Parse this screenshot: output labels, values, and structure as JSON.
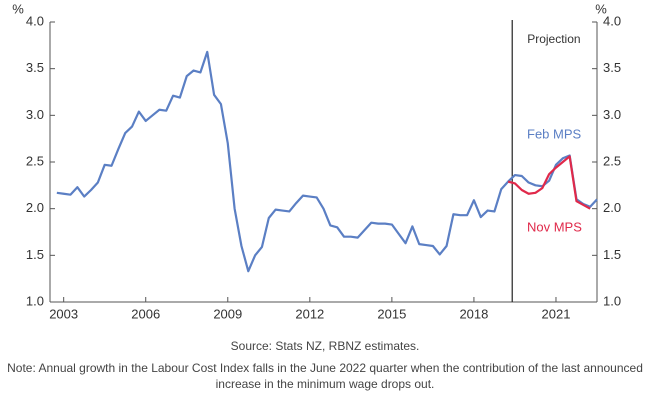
{
  "chart_data": {
    "type": "line",
    "y_unit": "%",
    "y2_unit": "%",
    "annotation": "Projection",
    "projection_start": 2019.4,
    "source": "Source: Stats NZ, RBNZ estimates.",
    "note": "Note: Annual growth in the Labour Cost Index falls in the June 2022 quarter when the contribution of the last announced increase in the minimum wage drops out.",
    "x": [
      2002.75,
      2003,
      2003.25,
      2003.5,
      2003.75,
      2004,
      2004.25,
      2004.5,
      2004.75,
      2005,
      2005.25,
      2005.5,
      2005.75,
      2006,
      2006.25,
      2006.5,
      2006.75,
      2007,
      2007.25,
      2007.5,
      2007.75,
      2008,
      2008.25,
      2008.5,
      2008.75,
      2009,
      2009.25,
      2009.5,
      2009.75,
      2010,
      2010.25,
      2010.5,
      2010.75,
      2011,
      2011.25,
      2011.5,
      2011.75,
      2012,
      2012.25,
      2012.5,
      2012.75,
      2013,
      2013.25,
      2013.5,
      2013.75,
      2014,
      2014.25,
      2014.5,
      2014.75,
      2015,
      2015.25,
      2015.5,
      2015.75,
      2016,
      2016.25,
      2016.5,
      2016.75,
      2017,
      2017.25,
      2017.5,
      2017.75,
      2018,
      2018.25,
      2018.5,
      2018.75,
      2019,
      2019.25,
      2019.5,
      2019.75,
      2020,
      2020.25,
      2020.5,
      2020.75,
      2021,
      2021.25,
      2021.5,
      2021.75,
      2022,
      2022.25,
      2022.5
    ],
    "series": [
      {
        "name": "Feb MPS",
        "color": "#5b7fc4",
        "values": [
          2.17,
          2.16,
          2.15,
          2.23,
          2.13,
          2.2,
          2.28,
          2.47,
          2.46,
          2.64,
          2.81,
          2.88,
          3.04,
          2.94,
          3.0,
          3.06,
          3.05,
          3.21,
          3.19,
          3.42,
          3.48,
          3.46,
          3.68,
          3.22,
          3.12,
          2.7,
          2.0,
          1.6,
          1.33,
          1.5,
          1.59,
          1.9,
          1.99,
          1.98,
          1.97,
          2.06,
          2.14,
          2.13,
          2.12,
          2.0,
          1.82,
          1.8,
          1.7,
          1.7,
          1.69,
          1.77,
          1.85,
          1.84,
          1.84,
          1.83,
          1.73,
          1.63,
          1.81,
          1.62,
          1.61,
          1.6,
          1.51,
          1.6,
          1.94,
          1.93,
          1.93,
          2.09,
          1.91,
          1.98,
          1.97,
          2.21,
          2.29,
          2.36,
          2.35,
          2.28,
          2.25,
          2.24,
          2.3,
          2.47,
          2.54,
          2.57,
          2.1,
          2.05,
          2.02,
          2.1
        ]
      },
      {
        "name": "Nov MPS",
        "color": "#e0294a",
        "values": [
          null,
          null,
          null,
          null,
          null,
          null,
          null,
          null,
          null,
          null,
          null,
          null,
          null,
          null,
          null,
          null,
          null,
          null,
          null,
          null,
          null,
          null,
          null,
          null,
          null,
          null,
          null,
          null,
          null,
          null,
          null,
          null,
          null,
          null,
          null,
          null,
          null,
          null,
          null,
          null,
          null,
          null,
          null,
          null,
          null,
          null,
          null,
          null,
          null,
          null,
          null,
          null,
          null,
          null,
          null,
          null,
          null,
          null,
          null,
          null,
          null,
          null,
          null,
          null,
          null,
          null,
          2.29,
          2.27,
          2.2,
          2.16,
          2.17,
          2.22,
          2.37,
          2.44,
          2.5,
          2.56,
          2.08,
          2.04,
          2.0,
          null
        ]
      }
    ],
    "xlim": [
      2002.5,
      2022.5
    ],
    "xticks": [
      2003,
      2006,
      2009,
      2012,
      2015,
      2018,
      2021
    ],
    "ylim": [
      1,
      4
    ],
    "yticks": [
      {
        "value": 1,
        "label": "1.0"
      },
      {
        "value": 1.5,
        "label": "1.5"
      },
      {
        "value": 2,
        "label": "2.0"
      },
      {
        "value": 2.5,
        "label": "2.5"
      },
      {
        "value": 3,
        "label": "3.0"
      },
      {
        "value": 3.5,
        "label": "3.5"
      },
      {
        "value": 4,
        "label": "4.0"
      }
    ],
    "y2lim": [
      1,
      4
    ],
    "y2ticks": [
      {
        "value": 1,
        "label": "1.0"
      },
      {
        "value": 1.5,
        "label": "1.5"
      },
      {
        "value": 2,
        "label": "2.0"
      },
      {
        "value": 2.5,
        "label": "2.5"
      },
      {
        "value": 3,
        "label": "3.0"
      },
      {
        "value": 3.5,
        "label": "3.5"
      },
      {
        "value": 4,
        "label": "4.0"
      }
    ]
  }
}
